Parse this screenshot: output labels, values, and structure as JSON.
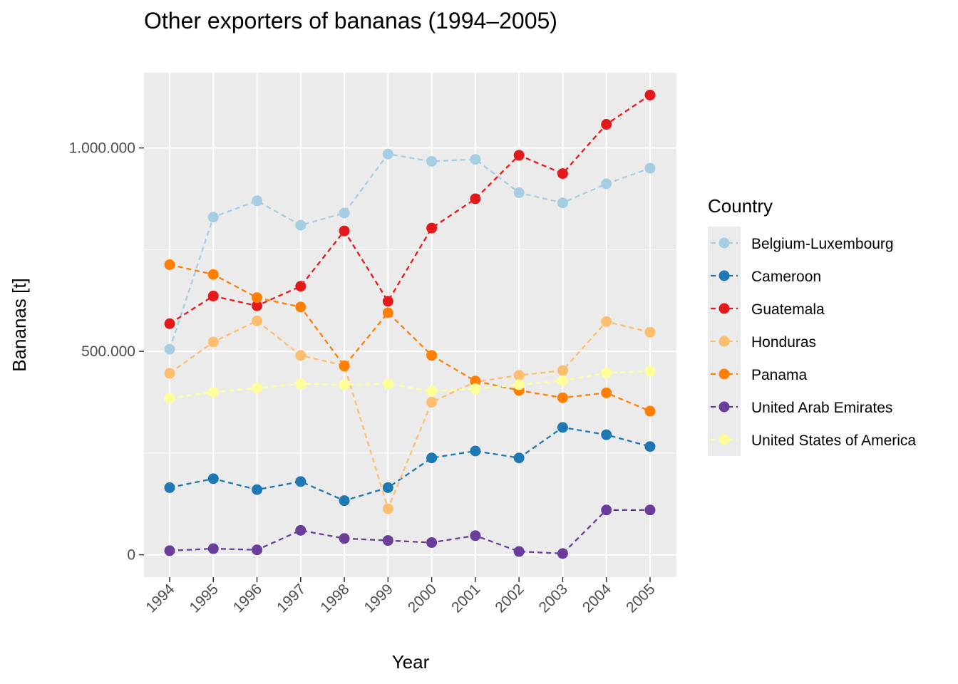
{
  "chart_data": {
    "type": "line",
    "title": "Other exporters of bananas (1994–2005)",
    "xlabel": "Year",
    "ylabel": "Bananas [t]",
    "x": [
      "1994",
      "1995",
      "1996",
      "1997",
      "1998",
      "1999",
      "2000",
      "2001",
      "2002",
      "2003",
      "2004",
      "2005"
    ],
    "ylim": [
      -55000,
      1185000
    ],
    "yticks": [
      0,
      500000,
      1000000
    ],
    "ytick_labels": [
      "0",
      "500.000",
      "1.000.000"
    ],
    "legend_title": "Country",
    "legend_position": "right",
    "grid": true,
    "line_style": "dashed",
    "series": [
      {
        "name": "Belgium-Luxembourg",
        "color": "#a6cee3",
        "values": [
          505000,
          830000,
          870000,
          810000,
          840000,
          985000,
          967000,
          972000,
          890000,
          865000,
          912000,
          950000
        ]
      },
      {
        "name": "Cameroon",
        "color": "#1f78b4",
        "values": [
          165000,
          187000,
          160000,
          180000,
          133000,
          165000,
          238000,
          255000,
          238000,
          313000,
          295000,
          266000
        ]
      },
      {
        "name": "Guatemala",
        "color": "#e31a1c",
        "values": [
          568000,
          636000,
          612000,
          660000,
          796000,
          623000,
          803000,
          875000,
          982000,
          937000,
          1058000,
          1130000
        ]
      },
      {
        "name": "Honduras",
        "color": "#fdbf6f",
        "values": [
          446000,
          523000,
          575000,
          490000,
          465000,
          113000,
          375000,
          425000,
          441000,
          453000,
          573000,
          547000
        ]
      },
      {
        "name": "Panama",
        "color": "#ff7f00",
        "values": [
          713000,
          689000,
          632000,
          609000,
          464000,
          595000,
          490000,
          427000,
          404000,
          386000,
          398000,
          353000
        ]
      },
      {
        "name": "United Arab Emirates",
        "color": "#6a3d9a",
        "values": [
          10000,
          15000,
          12000,
          60000,
          40000,
          35000,
          30000,
          47000,
          8000,
          3000,
          110000,
          110000
        ]
      },
      {
        "name": "United States of America",
        "color": "#ffff99",
        "values": [
          385000,
          400000,
          410000,
          420000,
          418000,
          420000,
          402000,
          408000,
          418000,
          428000,
          447000,
          451000
        ]
      }
    ]
  }
}
